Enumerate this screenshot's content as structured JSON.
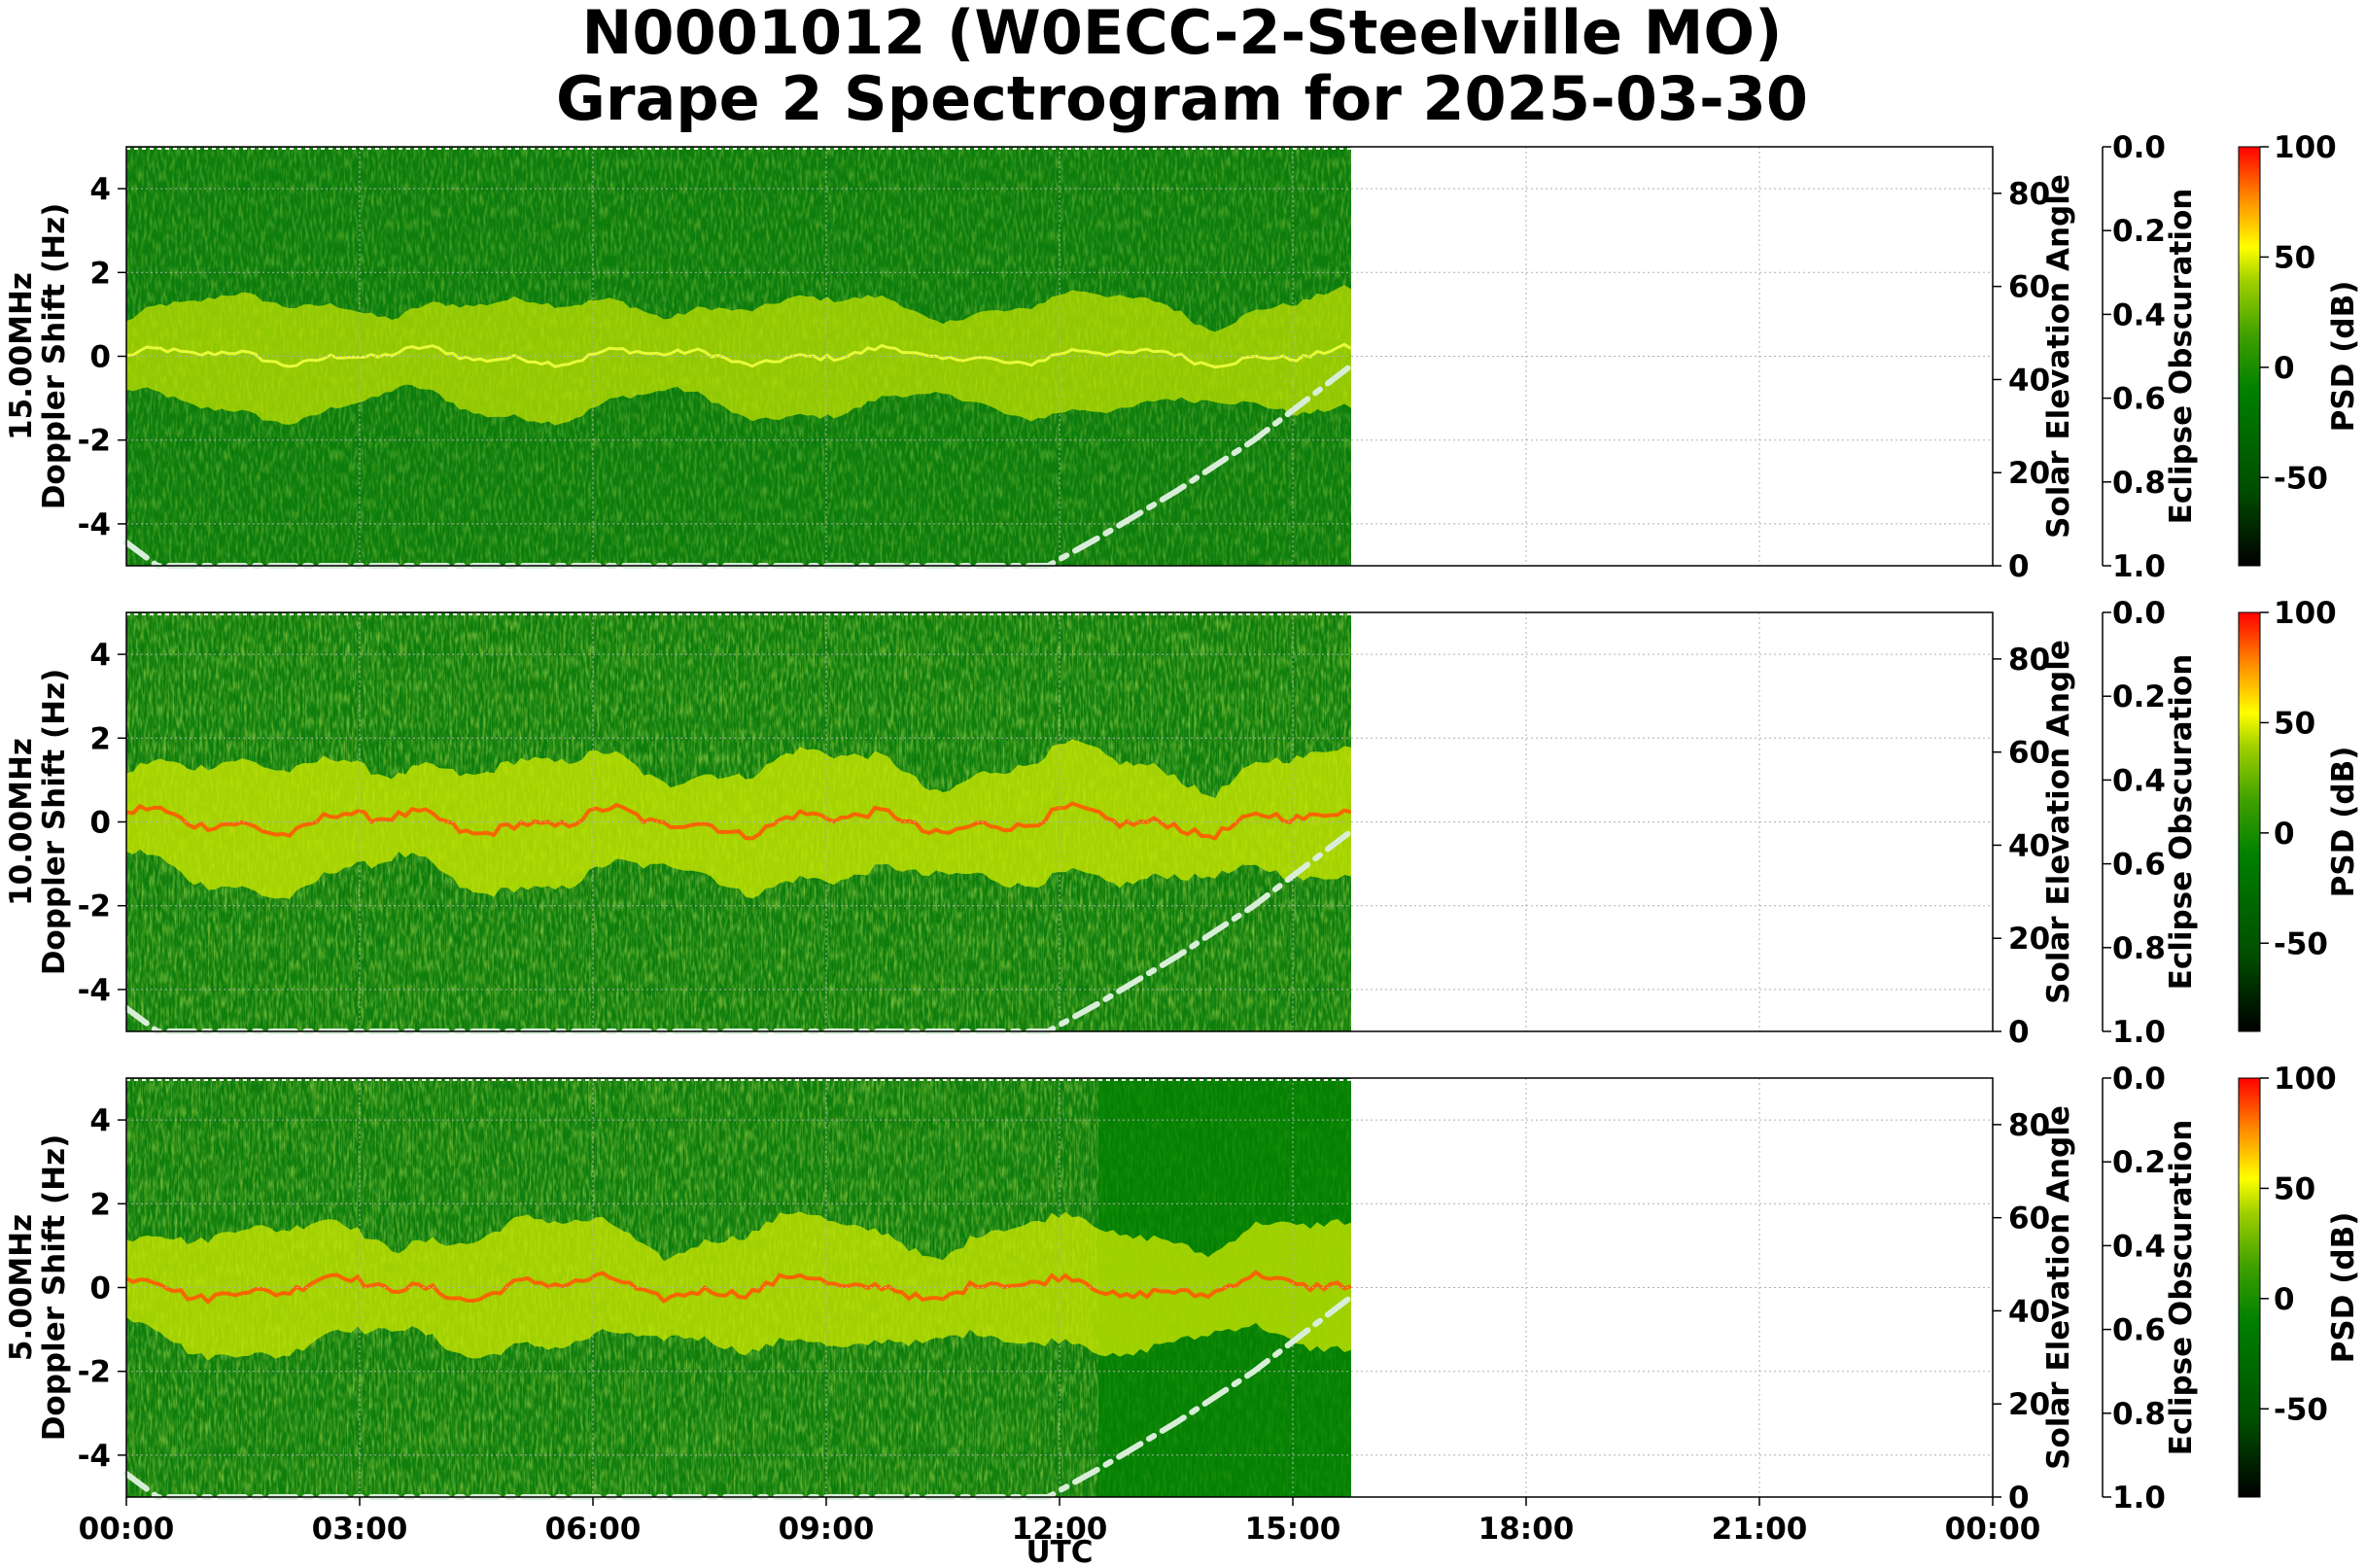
{
  "chart_data": {
    "type": "heatmap",
    "title": "N0001012 (W0ECC-2-Steelville MO)",
    "subtitle": "Grape 2 Spectrogram for 2025-03-30",
    "xlabel": "UTC",
    "x_ticks": [
      "00:00",
      "03:00",
      "06:00",
      "09:00",
      "12:00",
      "15:00",
      "18:00",
      "21:00",
      "00:00"
    ],
    "xlim_hours": [
      0,
      24
    ],
    "data_end_hours": 15.75,
    "ylim_doppler": [
      -5,
      5
    ],
    "doppler_ticks": [
      4,
      2,
      0,
      -2,
      -4
    ],
    "solar_label": "Solar Elevation Angle",
    "solar_ylim": [
      0,
      90
    ],
    "solar_ticks": [
      0,
      20,
      40,
      60,
      80
    ],
    "solar_elevation_series": [
      {
        "hours": 0.0,
        "deg": 5
      },
      {
        "hours": 0.4,
        "deg": 0
      },
      {
        "hours": 11.85,
        "deg": 0
      },
      {
        "hours": 12.5,
        "deg": 6
      },
      {
        "hours": 13.5,
        "deg": 16
      },
      {
        "hours": 14.5,
        "deg": 27
      },
      {
        "hours": 15.75,
        "deg": 43
      }
    ],
    "eclipse_label": "Eclipse Obscuration",
    "eclipse_ylim": [
      0.0,
      1.0
    ],
    "eclipse_ticks": [
      "0.0",
      "0.2",
      "0.4",
      "0.6",
      "0.8",
      "1.0"
    ],
    "colorbar_label": "PSD (dB)",
    "colorbar_range": [
      -90,
      100
    ],
    "colorbar_ticks": [
      100,
      50,
      0,
      -50
    ],
    "colormap": [
      "#000000",
      "#006400",
      "#008000",
      "#33a000",
      "#99cc00",
      "#ffff00",
      "#ff9900",
      "#ff0000"
    ],
    "grid": true,
    "panels": [
      {
        "ylabel_freq": "15.00MHz",
        "ylabel": "Doppler Shift (Hz)",
        "carrier_hz": 0.0,
        "intensity": 0.55,
        "day_fade": false
      },
      {
        "ylabel_freq": "10.00MHz",
        "ylabel": "Doppler Shift (Hz)",
        "carrier_hz": 0.0,
        "intensity": 0.85,
        "day_fade": false
      },
      {
        "ylabel_freq": "5.00MHz",
        "ylabel": "Doppler Shift (Hz)",
        "carrier_hz": 0.0,
        "intensity": 0.8,
        "day_fade": true
      }
    ]
  }
}
